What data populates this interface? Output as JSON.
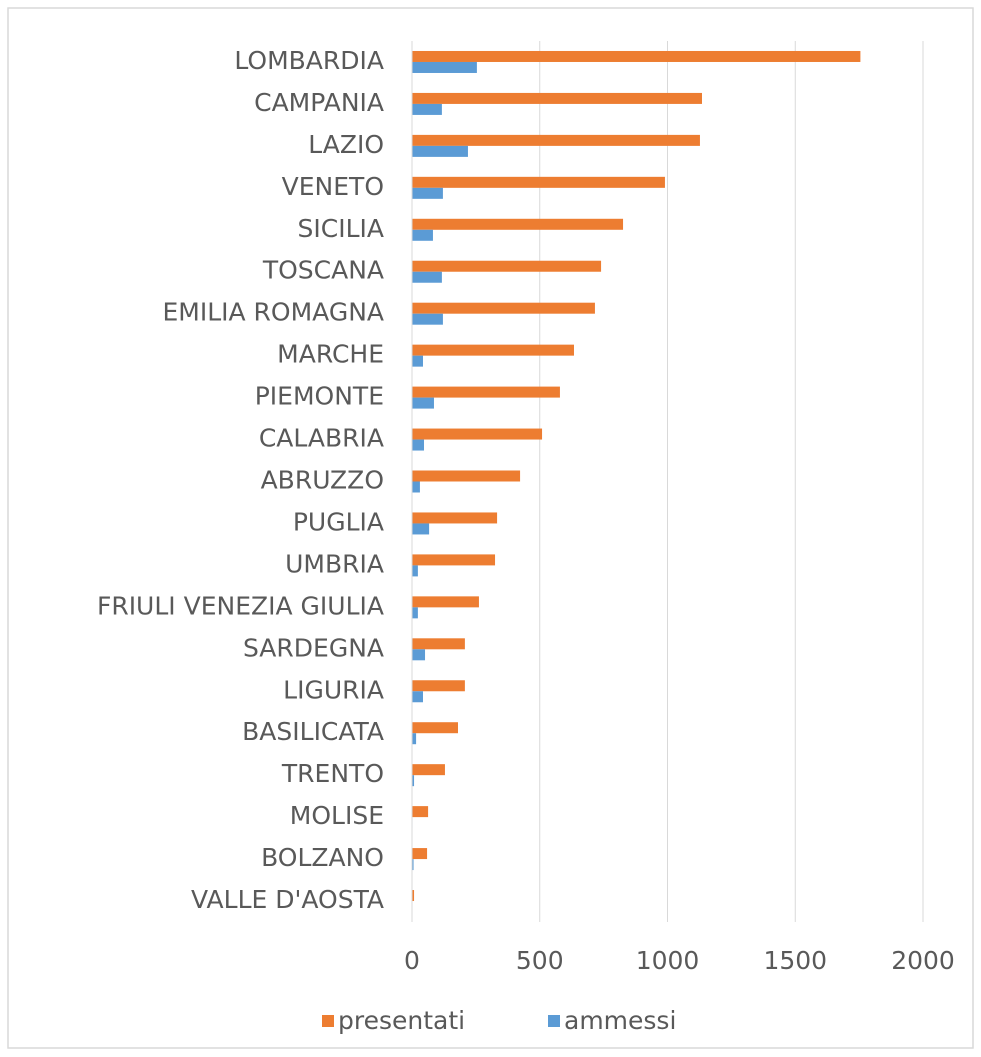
{
  "chart_data": {
    "type": "hbar",
    "categories": [
      "LOMBARDIA",
      "CAMPANIA",
      "LAZIO",
      "VENETO",
      "SICILIA",
      "TOSCANA",
      "EMILIA ROMAGNA",
      "MARCHE",
      "PIEMONTE",
      "CALABRIA",
      "ABRUZZO",
      "PUGLIA",
      "UMBRIA",
      "FRIULI VENEZIA GIULIA",
      "SARDEGNA",
      "LIGURIA",
      "BASILICATA",
      "TRENTO",
      "MOLISE",
      "BOLZANO",
      "VALLE D'AOSTA"
    ],
    "series": [
      {
        "name": "presentati",
        "color": "#ed7d31",
        "values": [
          1755,
          1135,
          1127,
          990,
          826,
          740,
          716,
          634,
          579,
          509,
          423,
          333,
          325,
          262,
          207,
          207,
          180,
          129,
          63,
          59,
          8
        ]
      },
      {
        "name": "ammessi",
        "color": "#5b9bd5",
        "values": [
          254,
          117,
          219,
          121,
          82,
          117,
          121,
          43,
          86,
          47,
          31,
          67,
          23,
          23,
          51,
          43,
          16,
          8,
          2,
          6,
          0
        ]
      }
    ],
    "xlim": [
      0,
      2000
    ],
    "xticks": [
      0,
      500,
      1000,
      1500,
      2000
    ],
    "grid": true,
    "legend": "bottom"
  }
}
